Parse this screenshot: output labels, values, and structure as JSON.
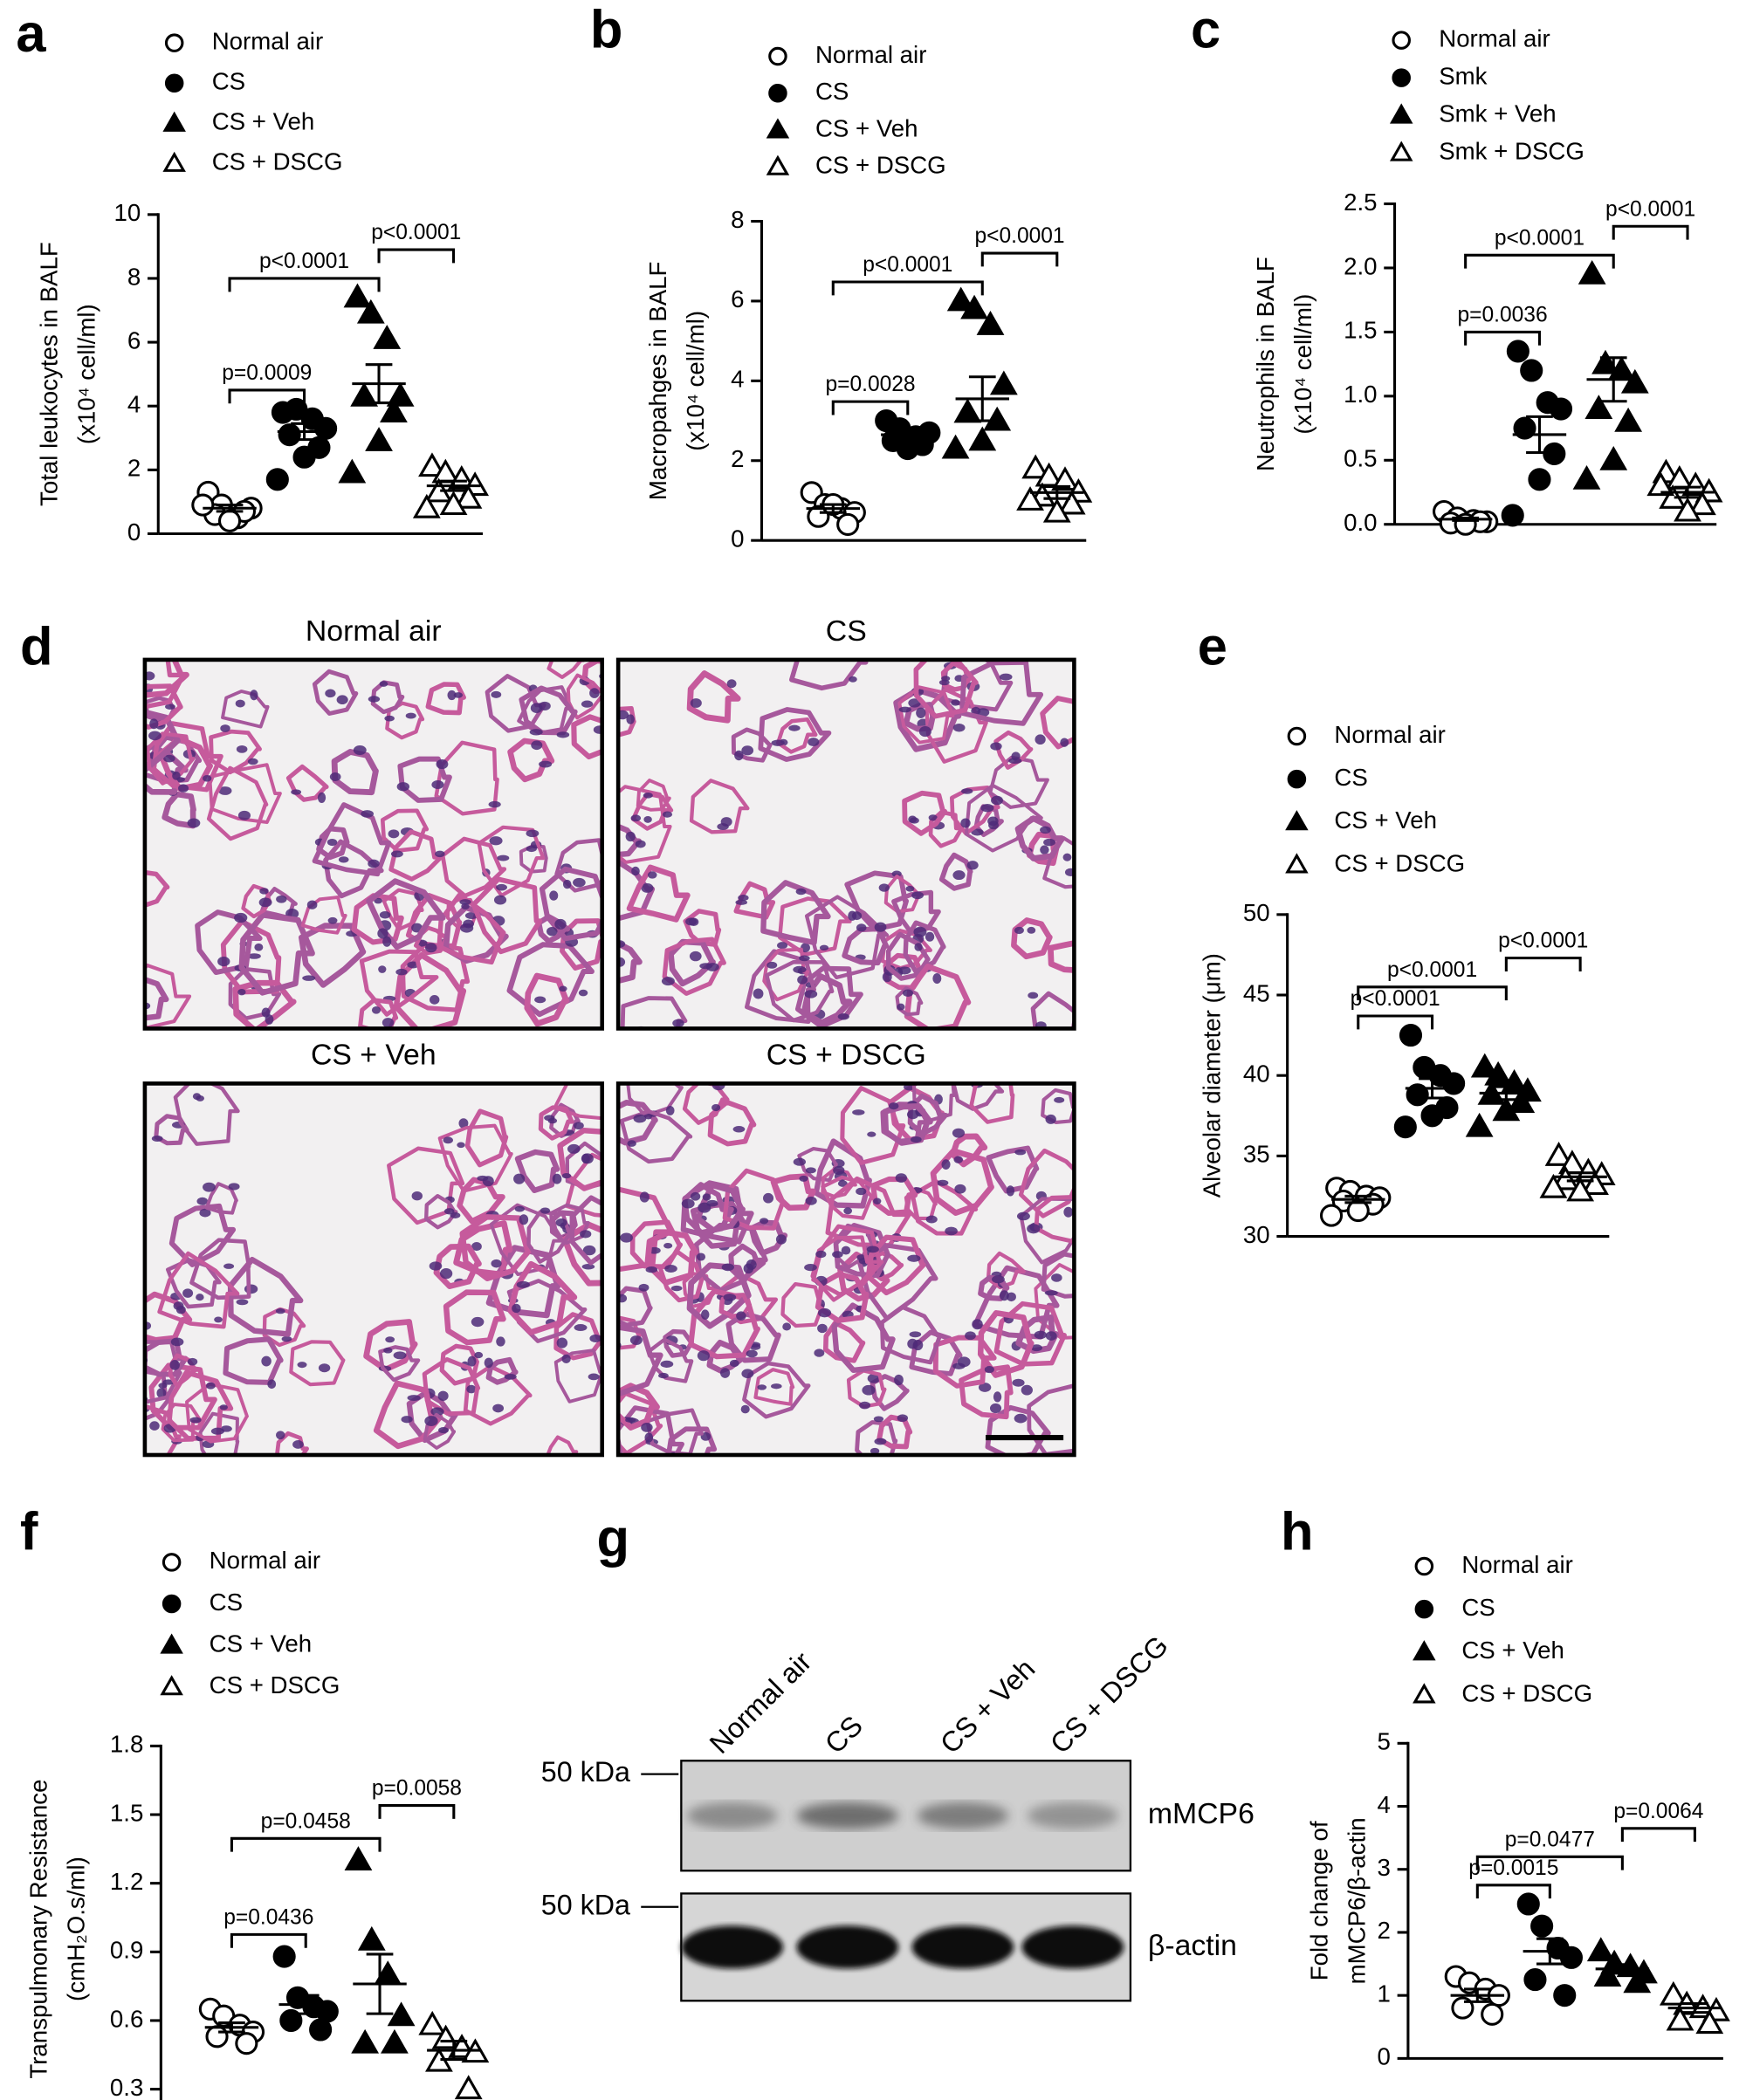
{
  "chart_data": [
    {
      "type": "strip",
      "panel": "a",
      "ylabel": [
        "Total leukocytes in BALF",
        "(x10⁴ cell/ml)"
      ],
      "ylim": [
        0,
        10
      ],
      "yticks": [
        0,
        2,
        4,
        6,
        8,
        10
      ],
      "series": [
        {
          "name": "Normal air",
          "marker": "open-circle",
          "color": "#000000",
          "values": [
            1.3,
            0.9,
            0.5,
            0.8,
            0.6,
            0.7,
            0.4,
            0.9
          ],
          "mean": 0.8,
          "sem": 0.1
        },
        {
          "name": "CS",
          "marker": "filled-circle",
          "color": "#000000",
          "values": [
            3.8,
            3.9,
            3.6,
            3.3,
            3.1,
            2.7,
            2.4,
            1.7
          ],
          "mean": 3.2,
          "sem": 0.25
        },
        {
          "name": "CS + Veh",
          "marker": "filled-triangle",
          "color": "#000000",
          "values": [
            7.4,
            6.9,
            6.1,
            4.3,
            4.3,
            3.8,
            2.9,
            1.9
          ],
          "mean": 4.7,
          "sem": 0.6
        },
        {
          "name": "CS + DSCG",
          "marker": "open-triangle",
          "color": "#000000",
          "values": [
            2.1,
            1.9,
            1.7,
            1.5,
            1.3,
            1.1,
            0.9,
            0.8
          ],
          "mean": 1.5,
          "sem": 0.15
        }
      ],
      "comparisons": [
        {
          "groups": [
            0,
            1
          ],
          "label": "p=0.0009"
        },
        {
          "groups": [
            0,
            2
          ],
          "label": "p<0.0001"
        },
        {
          "groups": [
            2,
            3
          ],
          "label": "p<0.0001"
        }
      ]
    },
    {
      "type": "strip",
      "panel": "b",
      "ylabel": [
        "Macropahges in BALF",
        "(x10⁴ cell/ml)"
      ],
      "ylim": [
        0,
        8
      ],
      "yticks": [
        0,
        2,
        4,
        6,
        8
      ],
      "series": [
        {
          "name": "Normal air",
          "marker": "open-circle",
          "color": "#000000",
          "values": [
            1.2,
            0.9,
            0.8,
            0.7,
            0.6,
            0.4,
            0.9
          ],
          "mean": 0.8,
          "sem": 0.1
        },
        {
          "name": "CS",
          "marker": "filled-circle",
          "color": "#000000",
          "values": [
            3.0,
            2.8,
            2.6,
            2.7,
            2.5,
            2.4,
            2.3
          ],
          "mean": 2.65,
          "sem": 0.1
        },
        {
          "name": "CS + Veh",
          "marker": "filled-triangle",
          "color": "#000000",
          "values": [
            6.0,
            5.8,
            5.4,
            3.9,
            3.2,
            3.0,
            2.5,
            2.3
          ],
          "mean": 3.55,
          "sem": 0.55
        },
        {
          "name": "CS + DSCG",
          "marker": "open-triangle",
          "color": "#000000",
          "values": [
            1.8,
            1.6,
            1.5,
            1.2,
            1.1,
            0.9,
            0.7,
            1.0
          ],
          "mean": 1.2,
          "sem": 0.15
        }
      ],
      "comparisons": [
        {
          "groups": [
            0,
            1
          ],
          "label": "p=0.0028"
        },
        {
          "groups": [
            0,
            2
          ],
          "label": "p<0.0001"
        },
        {
          "groups": [
            2,
            3
          ],
          "label": "p<0.0001"
        }
      ]
    },
    {
      "type": "strip",
      "panel": "c",
      "ylabel": [
        "Neutrophils in BALF",
        "(x10⁴ cell/ml)"
      ],
      "ylim": [
        0,
        2.5
      ],
      "yticks": [
        {
          "value": 0,
          "label": "0.0"
        },
        0.5,
        {
          "value": 1,
          "label": "1.0"
        },
        1.5,
        {
          "value": 2,
          "label": "2.0"
        },
        2.5
      ],
      "series": [
        {
          "name": "Normal air",
          "marker": "open-circle",
          "color": "#000000",
          "values": [
            0.1,
            0.05,
            0.03,
            0.02,
            0.01,
            0.02,
            0.0
          ],
          "mean": 0.04,
          "sem": 0.01
        },
        {
          "name": "Smk",
          "marker": "filled-circle",
          "color": "#000000",
          "values": [
            1.35,
            1.2,
            0.95,
            0.9,
            0.75,
            0.55,
            0.35,
            0.07
          ],
          "mean": 0.7,
          "sem": 0.14
        },
        {
          "name": "Smk + Veh",
          "marker": "filled-triangle",
          "color": "#000000",
          "values": [
            1.95,
            1.25,
            1.2,
            1.1,
            0.9,
            0.8,
            0.5,
            0.35
          ],
          "mean": 1.13,
          "sem": 0.17
        },
        {
          "name": "Smk + DSCG",
          "marker": "open-triangle",
          "color": "#000000",
          "values": [
            0.4,
            0.35,
            0.3,
            0.25,
            0.2,
            0.15,
            0.1,
            0.3
          ],
          "mean": 0.25,
          "sem": 0.04
        }
      ],
      "comparisons": [
        {
          "groups": [
            0,
            1
          ],
          "label": "p=0.0036"
        },
        {
          "groups": [
            0,
            2
          ],
          "label": "p<0.0001"
        },
        {
          "groups": [
            2,
            3
          ],
          "label": "p<0.0001"
        }
      ]
    },
    {
      "type": "strip",
      "panel": "e",
      "ylabel": [
        "Alveolar diameter (μm)"
      ],
      "ylim": [
        30,
        50
      ],
      "yticks": [
        30,
        35,
        40,
        45,
        50
      ],
      "series": [
        {
          "name": "Normal air",
          "marker": "open-circle",
          "color": "#000000",
          "values": [
            33.0,
            32.8,
            32.5,
            32.4,
            32.2,
            32.0,
            31.6,
            31.3
          ],
          "mean": 32.3,
          "sem": 0.2
        },
        {
          "name": "CS",
          "marker": "filled-circle",
          "color": "#000000",
          "values": [
            42.5,
            40.5,
            40.0,
            39.5,
            38.8,
            38.0,
            37.5,
            36.8
          ],
          "mean": 39.2,
          "sem": 0.6
        },
        {
          "name": "CS + Veh",
          "marker": "filled-triangle",
          "color": "#000000",
          "values": [
            40.5,
            40.0,
            39.5,
            39.0,
            38.8,
            38.3,
            37.8,
            36.8
          ],
          "mean": 38.9,
          "sem": 0.4
        },
        {
          "name": "CS + DSCG",
          "marker": "open-triangle",
          "color": "#000000",
          "values": [
            35.0,
            34.5,
            34.0,
            33.8,
            33.5,
            33.2,
            32.8,
            33.0
          ],
          "mean": 33.7,
          "sem": 0.25
        }
      ],
      "comparisons": [
        {
          "groups": [
            0,
            1
          ],
          "label": "p<0.0001"
        },
        {
          "groups": [
            0,
            2
          ],
          "label": "p<0.0001"
        },
        {
          "groups": [
            2,
            3
          ],
          "label": "p<0.0001"
        }
      ]
    },
    {
      "type": "strip",
      "panel": "f",
      "ylabel": [
        "Transpulmonary Resistance",
        "(cmH₂O.s/ml)"
      ],
      "ylim": [
        0.2,
        1.8
      ],
      "yticks": [
        0.3,
        0.6,
        0.9,
        1.2,
        1.5,
        1.8
      ],
      "series": [
        {
          "name": "Normal air",
          "marker": "open-circle",
          "color": "#000000",
          "values": [
            0.65,
            0.62,
            0.58,
            0.55,
            0.53,
            0.5
          ],
          "mean": 0.57,
          "sem": 0.02
        },
        {
          "name": "CS",
          "marker": "filled-circle",
          "color": "#000000",
          "values": [
            0.88,
            0.7,
            0.66,
            0.64,
            0.6,
            0.56
          ],
          "mean": 0.67,
          "sem": 0.04
        },
        {
          "name": "CS + Veh",
          "marker": "filled-triangle",
          "color": "#000000",
          "values": [
            1.3,
            0.95,
            0.8,
            0.62,
            0.5,
            0.5
          ],
          "mean": 0.76,
          "sem": 0.13
        },
        {
          "name": "CS + DSCG",
          "marker": "open-triangle",
          "color": "#000000",
          "values": [
            0.58,
            0.52,
            0.48,
            0.46,
            0.42,
            0.3
          ],
          "mean": 0.47,
          "sem": 0.04
        }
      ],
      "comparisons": [
        {
          "groups": [
            0,
            1
          ],
          "label": "p=0.0436"
        },
        {
          "groups": [
            0,
            2
          ],
          "label": "p=0.0458"
        },
        {
          "groups": [
            2,
            3
          ],
          "label": "p=0.0058"
        }
      ]
    },
    {
      "type": "strip",
      "panel": "h",
      "ylabel": [
        "Fold change of",
        "mMCP6/β-actin"
      ],
      "ylim": [
        0,
        5
      ],
      "yticks": [
        0,
        1,
        2,
        3,
        4,
        5
      ],
      "series": [
        {
          "name": "Normal air",
          "marker": "open-circle",
          "color": "#000000",
          "values": [
            1.3,
            1.2,
            1.1,
            1.0,
            0.8,
            0.7
          ],
          "mean": 1.0,
          "sem": 0.1
        },
        {
          "name": "CS",
          "marker": "filled-circle",
          "color": "#000000",
          "values": [
            2.45,
            2.1,
            1.75,
            1.6,
            1.25,
            1.0
          ],
          "mean": 1.7,
          "sem": 0.2
        },
        {
          "name": "CS + Veh",
          "marker": "filled-triangle",
          "color": "#000000",
          "values": [
            1.7,
            1.5,
            1.45,
            1.35,
            1.3,
            1.2
          ],
          "mean": 1.42,
          "sem": 0.07
        },
        {
          "name": "CS + DSCG",
          "marker": "open-triangle",
          "color": "#000000",
          "values": [
            1.0,
            0.85,
            0.8,
            0.75,
            0.6,
            0.55
          ],
          "mean": 0.8,
          "sem": 0.07
        }
      ],
      "comparisons": [
        {
          "groups": [
            0,
            1
          ],
          "label": "p=0.0015"
        },
        {
          "groups": [
            0,
            2
          ],
          "label": "p=0.0477"
        },
        {
          "groups": [
            2,
            3
          ],
          "label": "p=0.0064"
        }
      ]
    }
  ],
  "histology": {
    "panel": "d",
    "titles": [
      "Normal air",
      "CS",
      "CS + Veh",
      "CS + DSCG"
    ]
  },
  "blot": {
    "panel": "g",
    "lanes": [
      "Normal air",
      "CS",
      "CS + Veh",
      "CS + DSCG"
    ],
    "markers": [
      "50 kDa",
      "50 kDa"
    ],
    "bands": [
      "mMCP6",
      "β-actin"
    ]
  }
}
